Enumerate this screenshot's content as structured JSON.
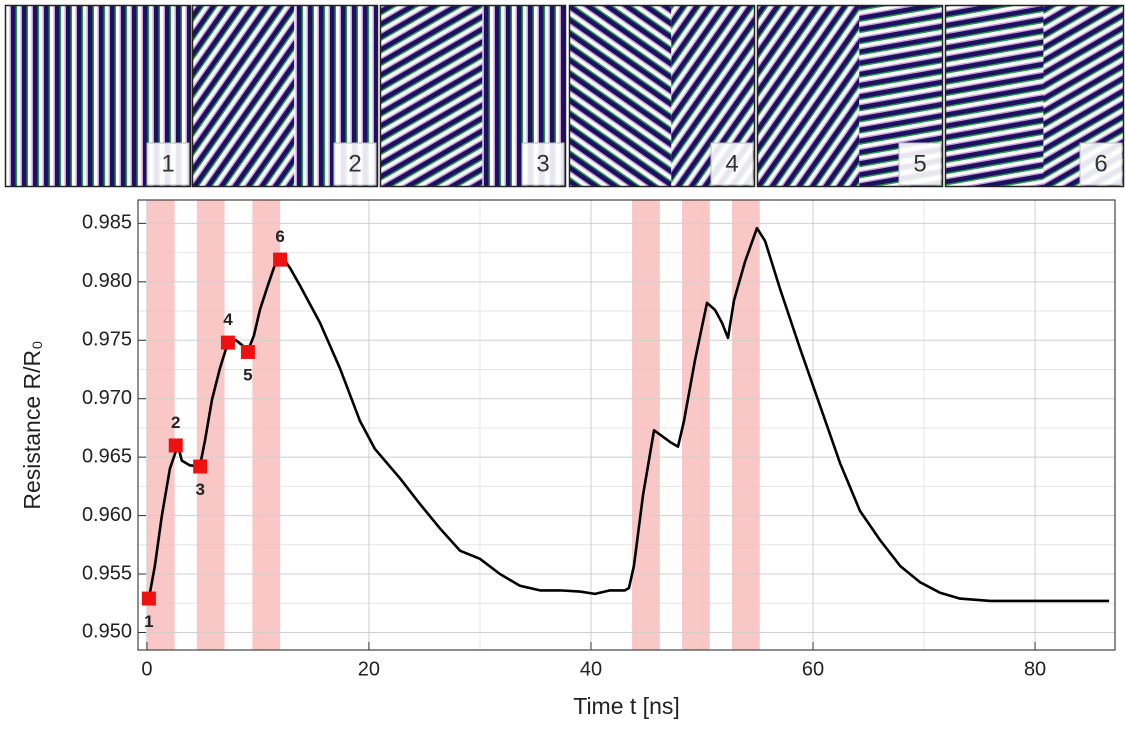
{
  "chart_data": {
    "type": "line",
    "xlabel": "Time t [ns]",
    "ylabel": "Resistance R/R₀",
    "xlim": [
      -0.8,
      87.2
    ],
    "ylim": [
      0.9485,
      0.987
    ],
    "xticks": [
      0,
      20,
      40,
      60,
      80
    ],
    "yticks": [
      {
        "value": 0.95,
        "label": "0.950"
      },
      0.955,
      {
        "value": 0.96,
        "label": "0.960"
      },
      0.965,
      {
        "value": 0.97,
        "label": "0.970"
      },
      0.975,
      {
        "value": 0.98,
        "label": "0.980"
      },
      0.985
    ],
    "xminor": [
      10,
      30,
      50,
      70
    ],
    "yminor": [
      0.9525,
      0.9575,
      0.9625,
      0.9675,
      0.9725,
      0.9775,
      0.9825
    ],
    "grid": true,
    "shaded_color": "#f8b4b4",
    "shaded_intervals": [
      [
        0,
        2.5
      ],
      [
        4.5,
        7
      ],
      [
        9.5,
        12
      ],
      [
        43.7,
        46.2
      ],
      [
        48.2,
        50.7
      ],
      [
        52.7,
        55.2
      ]
    ],
    "snapshot_labels": [
      "1",
      "2",
      "3",
      "4",
      "5",
      "6"
    ],
    "series": [
      {
        "color": "#000000",
        "x": [
          0.18,
          0.72,
          1.35,
          2.07,
          2.79,
          3.15,
          3.87,
          4.77,
          5.23,
          5.86,
          6.58,
          7.3,
          8.02,
          8.56,
          9.1,
          9.64,
          10.18,
          10.9,
          11.62,
          12.07,
          12.88,
          13.78,
          15.59,
          17.39,
          19.19,
          20.54,
          22.79,
          24.59,
          26.4,
          28.2,
          30.0,
          31.8,
          33.6,
          35.41,
          37.21,
          39.01,
          40.36,
          41.71,
          43.06,
          43.42,
          43.87,
          44.68,
          45.68,
          46.4,
          47.12,
          47.84,
          48.38,
          49.37,
          50.45,
          51.17,
          51.8,
          52.34,
          52.88,
          53.87,
          54.95,
          55.68,
          57.03,
          58.83,
          60.63,
          62.43,
          64.23,
          66.04,
          67.84,
          69.64,
          71.44,
          73.24,
          75.95,
          79.55,
          83.15,
          86.67
        ],
        "values": [
          0.9529,
          0.9557,
          0.96,
          0.964,
          0.966,
          0.9647,
          0.9643,
          0.9642,
          0.9664,
          0.9699,
          0.9726,
          0.9748,
          0.975,
          0.9746,
          0.9741,
          0.9754,
          0.9776,
          0.9797,
          0.9817,
          0.9823,
          0.9812,
          0.9797,
          0.9765,
          0.9726,
          0.9681,
          0.9657,
          0.9632,
          0.961,
          0.9589,
          0.957,
          0.9563,
          0.955,
          0.954,
          0.9536,
          0.9536,
          0.9535,
          0.9533,
          0.9536,
          0.9536,
          0.9538,
          0.9557,
          0.9617,
          0.9673,
          0.9668,
          0.9663,
          0.9659,
          0.9681,
          0.9733,
          0.9782,
          0.9776,
          0.9765,
          0.9752,
          0.9784,
          0.9817,
          0.9846,
          0.9835,
          0.9794,
          0.9743,
          0.9694,
          0.9645,
          0.9604,
          0.9579,
          0.9557,
          0.9543,
          0.9534,
          0.9529,
          0.9527,
          0.9527,
          0.9527,
          0.9527
        ]
      },
      {
        "color": "#ee1111",
        "x": [
          0.18,
          2.6,
          4.8,
          7.3,
          9.1,
          12.0
        ],
        "values": [
          0.9529,
          0.966,
          0.9642,
          0.9748,
          0.974,
          0.9819
        ],
        "point_labels": [
          "1",
          "2",
          "3",
          "4",
          "5",
          "6"
        ]
      }
    ]
  }
}
